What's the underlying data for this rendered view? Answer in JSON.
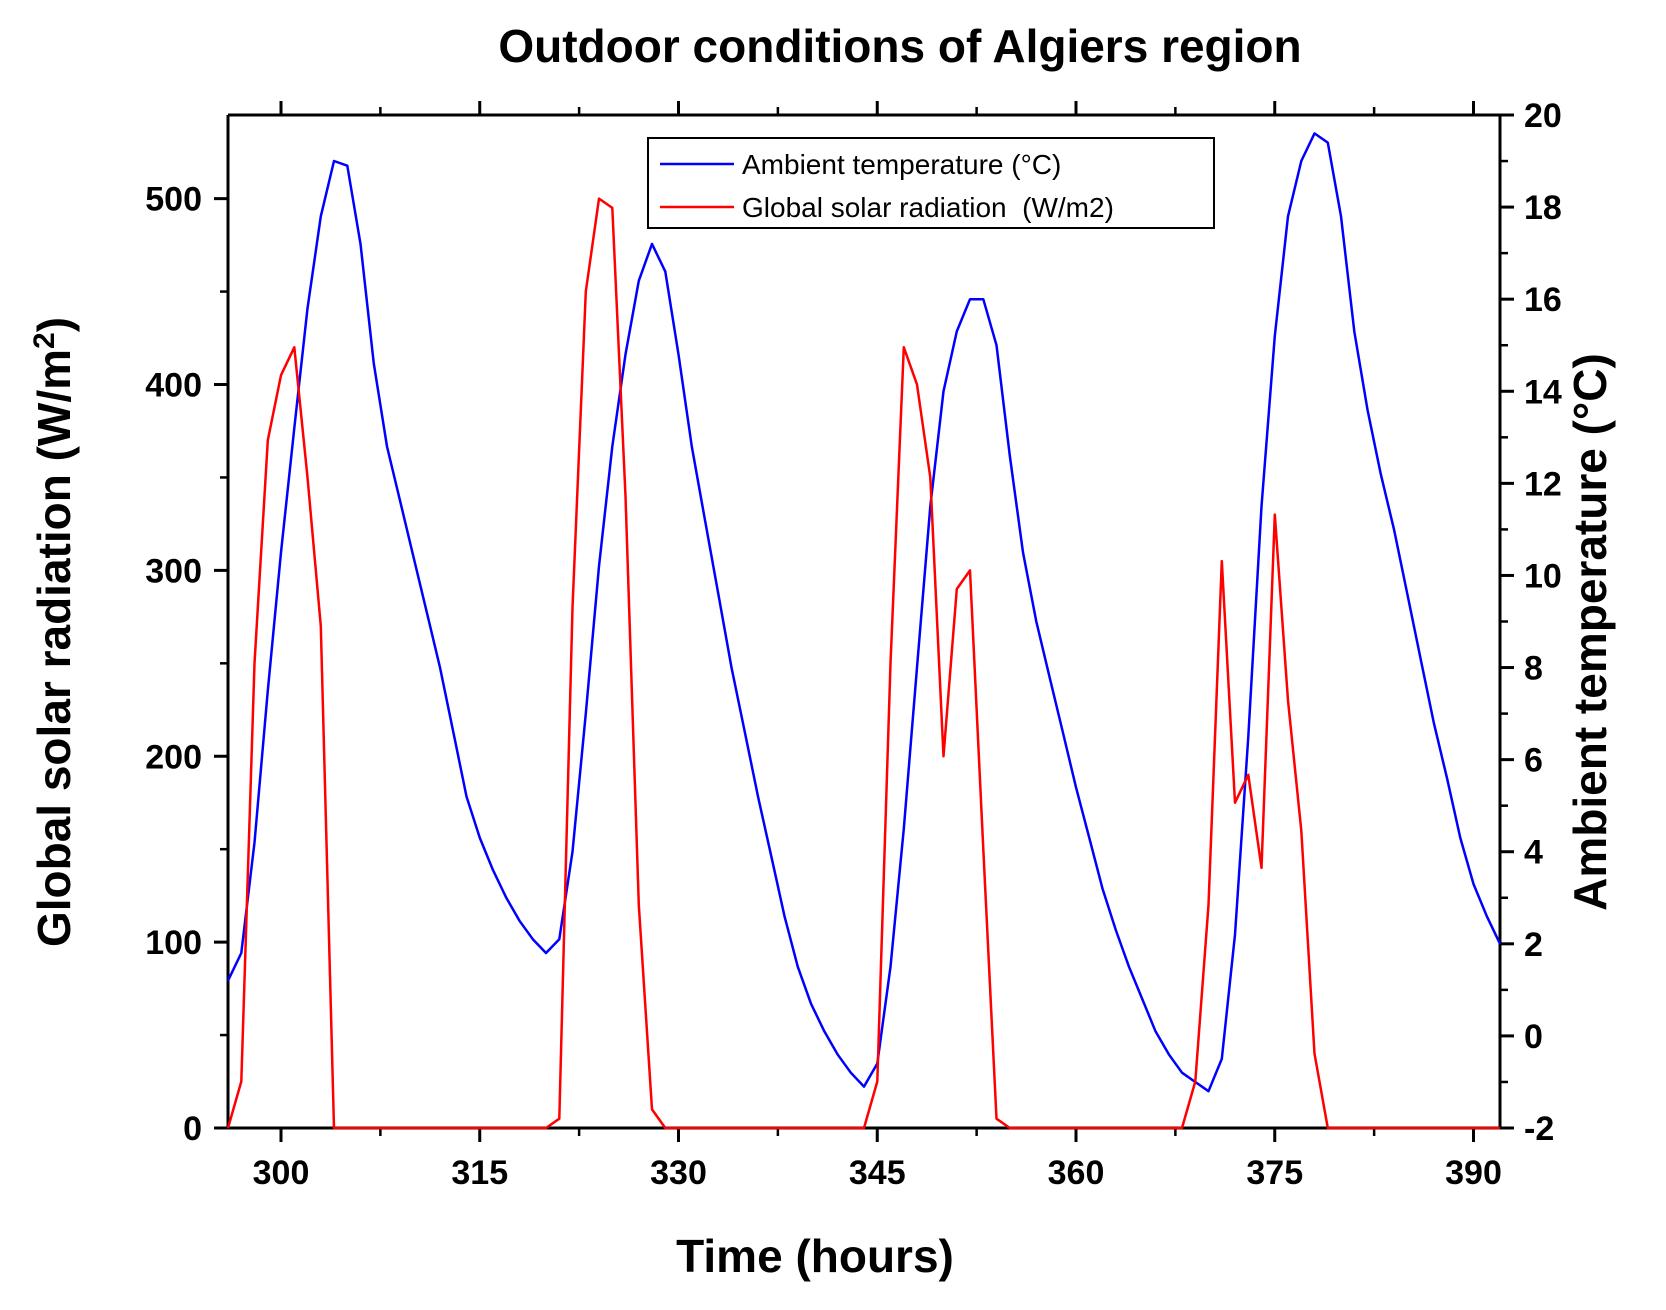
{
  "chart_data": {
    "type": "line",
    "title": "Outdoor conditions of Algiers region",
    "xlabel": "Time (hours)",
    "ylabel_left": "Global solar radiation (W/m",
    "ylabel_left_sup": "2",
    "ylabel_left_close": ")",
    "ylabel_right": "Ambient temperature (°C)",
    "xlim": [
      296,
      392
    ],
    "ylim_left": [
      0,
      545
    ],
    "ylim_right": [
      -2,
      20
    ],
    "x_ticks": [
      "300",
      "315",
      "330",
      "345",
      "360",
      "375",
      "390"
    ],
    "y_left_ticks": [
      "0",
      "100",
      "200",
      "300",
      "400",
      "500"
    ],
    "y_right_ticks": [
      "-2",
      "0",
      "2",
      "4",
      "6",
      "8",
      "10",
      "12",
      "14",
      "16",
      "18",
      "20"
    ],
    "grid": false,
    "legend_position": "top-center",
    "series": [
      {
        "name": "Ambient temperature (°C)",
        "axis": "right",
        "color": "#0000ff",
        "x": [
          296,
          297,
          298,
          299,
          300,
          301,
          302,
          303,
          304,
          305,
          306,
          307,
          308,
          309,
          310,
          311,
          312,
          313,
          314,
          315,
          316,
          317,
          318,
          319,
          320,
          321,
          322,
          323,
          324,
          325,
          326,
          327,
          328,
          329,
          330,
          331,
          332,
          333,
          334,
          335,
          336,
          337,
          338,
          339,
          340,
          341,
          342,
          343,
          344,
          345,
          346,
          347,
          348,
          349,
          350,
          351,
          352,
          353,
          354,
          355,
          356,
          357,
          358,
          359,
          360,
          361,
          362,
          363,
          364,
          365,
          366,
          367,
          368,
          369,
          370,
          371,
          372,
          373,
          374,
          375,
          376,
          377,
          378,
          379,
          380,
          381,
          382,
          383,
          384,
          385,
          386,
          387,
          388,
          389,
          390,
          391,
          392
        ],
        "values": [
          1.2,
          1.8,
          4.2,
          7.5,
          10.5,
          13.2,
          15.8,
          17.8,
          19.0,
          18.9,
          17.2,
          14.6,
          12.8,
          11.6,
          10.4,
          9.2,
          8.0,
          6.6,
          5.2,
          4.3,
          3.6,
          3.0,
          2.5,
          2.1,
          1.8,
          2.1,
          4.0,
          7.0,
          10.2,
          12.8,
          14.8,
          16.4,
          17.2,
          16.6,
          14.8,
          12.8,
          11.2,
          9.6,
          8.0,
          6.6,
          5.2,
          3.9,
          2.6,
          1.5,
          0.7,
          0.1,
          -0.4,
          -0.8,
          -1.1,
          -0.6,
          1.5,
          4.5,
          8.0,
          11.5,
          14.0,
          15.3,
          16.0,
          16.0,
          15.0,
          12.6,
          10.5,
          9.0,
          7.8,
          6.6,
          5.4,
          4.3,
          3.2,
          2.3,
          1.5,
          0.8,
          0.1,
          -0.4,
          -0.8,
          -1.0,
          -1.2,
          -0.5,
          2.2,
          6.5,
          11.5,
          15.2,
          17.8,
          19.0,
          19.6,
          19.4,
          17.8,
          15.3,
          13.6,
          12.2,
          11.0,
          9.6,
          8.2,
          6.8,
          5.6,
          4.3,
          3.3,
          2.6,
          2.0
        ]
      },
      {
        "name": "Global solar radiation  (W/m2)",
        "axis": "left",
        "color": "#ff0000",
        "x": [
          296,
          297,
          298,
          299,
          300,
          301,
          302,
          303,
          304,
          305,
          306,
          307,
          320,
          321,
          322,
          323,
          324,
          325,
          326,
          327,
          328,
          329,
          330,
          331,
          344,
          345,
          346,
          347,
          348,
          349,
          350,
          351,
          352,
          353,
          354,
          355,
          356,
          368,
          369,
          370,
          371,
          372,
          373,
          374,
          375,
          376,
          377,
          378,
          379,
          392
        ],
        "values": [
          0,
          25,
          250,
          370,
          405,
          420,
          350,
          270,
          0,
          0,
          0,
          0,
          0,
          5,
          280,
          450,
          500,
          495,
          340,
          120,
          10,
          0,
          0,
          0,
          0,
          25,
          250,
          420,
          400,
          350,
          200,
          290,
          300,
          150,
          5,
          0,
          0,
          0,
          25,
          120,
          305,
          175,
          190,
          140,
          330,
          230,
          160,
          40,
          0,
          0
        ]
      }
    ]
  }
}
